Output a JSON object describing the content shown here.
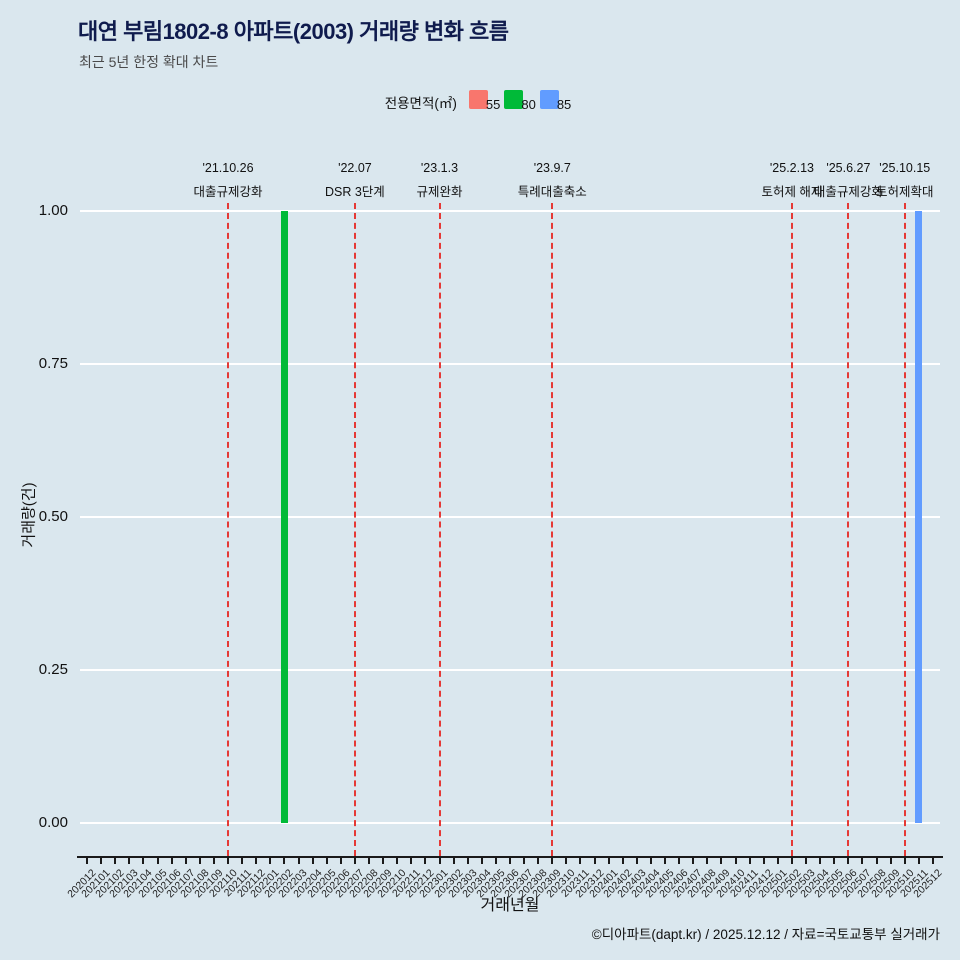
{
  "title": "대연 부림1802-8 아파트(2003) 거래량 변화 흐름",
  "subtitle": "최근 5년 한정 확대 차트",
  "legend": {
    "label": "전용면적(㎡)",
    "items": [
      {
        "label": "55",
        "color": "#F8766D"
      },
      {
        "label": "80",
        "color": "#00BA38"
      },
      {
        "label": "85",
        "color": "#619CFF"
      }
    ]
  },
  "chart_data": {
    "type": "bar",
    "title": "대연 부림1802-8 아파트(2003) 거래량 변화 흐름",
    "subtitle": "최근 5년 한정 확대 차트",
    "xlabel": "거래년월",
    "ylabel": "거래량(건)",
    "ylim": [
      0,
      1
    ],
    "grid": "horizontal-white-major",
    "legend_position": "top-center",
    "background": "#dae7ee",
    "event_line_color": "#e53935",
    "yticks": [
      {
        "label": "0.00",
        "value": 0
      },
      {
        "label": "0.25",
        "value": 0.25
      },
      {
        "label": "0.50",
        "value": 0.5
      },
      {
        "label": "0.75",
        "value": 0.75
      },
      {
        "label": "1.00",
        "value": 1
      }
    ],
    "categories": [
      "202012",
      "202101",
      "202102",
      "202103",
      "202104",
      "202105",
      "202106",
      "202107",
      "202108",
      "202109",
      "202110",
      "202111",
      "202112",
      "202201",
      "202202",
      "202203",
      "202204",
      "202205",
      "202206",
      "202207",
      "202208",
      "202209",
      "202210",
      "202211",
      "202212",
      "202301",
      "202302",
      "202303",
      "202304",
      "202305",
      "202306",
      "202307",
      "202308",
      "202309",
      "202310",
      "202311",
      "202312",
      "202401",
      "202402",
      "202403",
      "202404",
      "202405",
      "202406",
      "202407",
      "202408",
      "202409",
      "202410",
      "202411",
      "202412",
      "202501",
      "202502",
      "202503",
      "202504",
      "202505",
      "202506",
      "202507",
      "202508",
      "202509",
      "202510",
      "202511",
      "202512"
    ],
    "series": [
      {
        "name": "55",
        "color": "#F8766D",
        "points": []
      },
      {
        "name": "80",
        "color": "#00BA38",
        "points": [
          {
            "category": "202202",
            "value": 1
          }
        ]
      },
      {
        "name": "85",
        "color": "#619CFF",
        "points": [
          {
            "category": "202511",
            "value": 1
          }
        ]
      }
    ],
    "events": [
      {
        "date": "'21.10.26",
        "label": "대출규제강화",
        "category": "202110"
      },
      {
        "date": "'22.07",
        "label": "DSR 3단계",
        "category": "202207"
      },
      {
        "date": "'23.1.3",
        "label": "규제완화",
        "category": "202301"
      },
      {
        "date": "'23.9.7",
        "label": "특례대출축소",
        "category": "202309"
      },
      {
        "date": "'25.2.13",
        "label": "토허제 해제",
        "category": "202502"
      },
      {
        "date": "'25.6.27",
        "label": "대출규제강화",
        "category": "202506"
      },
      {
        "date": "'25.10.15",
        "label": "토허제확대",
        "category": "202510"
      }
    ]
  },
  "footer": "©디아파트(dapt.kr) / 2025.12.12 / 자료=국토교통부 실거래가"
}
